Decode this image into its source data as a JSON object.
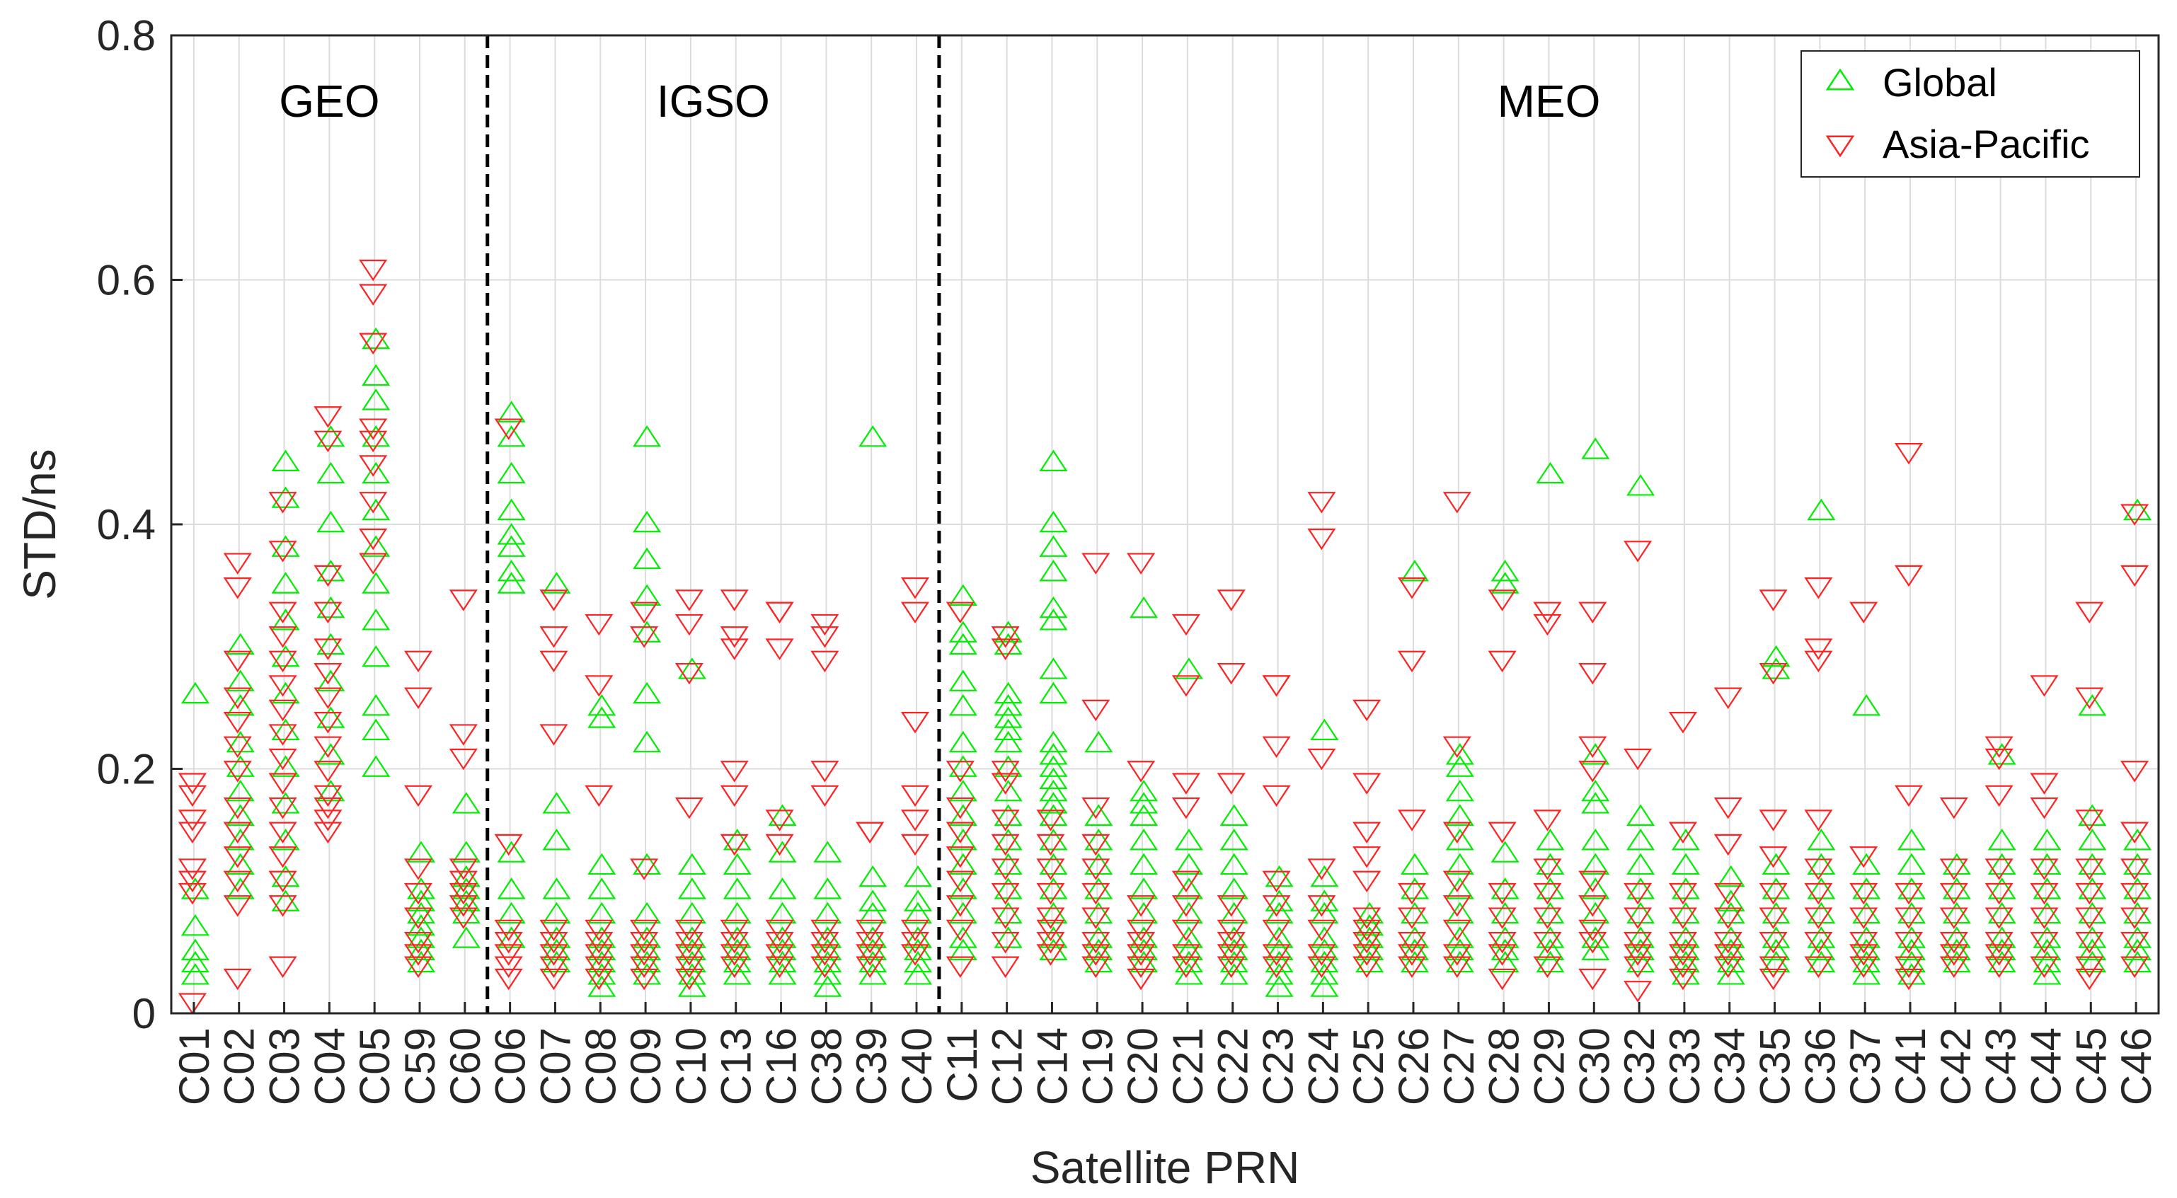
{
  "colors": {
    "global": "#00ee00",
    "asia_pacific": "#ff2222",
    "grid": "#dcdcdc",
    "axis": "#262626",
    "divider": "#000000"
  },
  "chart_data": {
    "type": "scatter",
    "xlabel": "Satellite PRN",
    "ylabel": "STD/ns",
    "ylim": [
      0,
      0.8
    ],
    "yticks": [
      0,
      0.2,
      0.4,
      0.6,
      0.8
    ],
    "ytick_labels": [
      "0",
      "0.2",
      "0.4",
      "0.6",
      "0.8"
    ],
    "grid": true,
    "legend_position": "top-right",
    "categories": [
      "C01",
      "C02",
      "C03",
      "C04",
      "C05",
      "C59",
      "C60",
      "C06",
      "C07",
      "C08",
      "C09",
      "C10",
      "C13",
      "C16",
      "C38",
      "C39",
      "C40",
      "C11",
      "C12",
      "C14",
      "C19",
      "C20",
      "C21",
      "C22",
      "C23",
      "C24",
      "C25",
      "C26",
      "C27",
      "C28",
      "C29",
      "C30",
      "C32",
      "C33",
      "C34",
      "C35",
      "C36",
      "C37",
      "C41",
      "C42",
      "C43",
      "C44",
      "C45",
      "C46"
    ],
    "groups": [
      {
        "label": "GEO",
        "members": [
          "C01",
          "C02",
          "C03",
          "C04",
          "C05",
          "C59",
          "C60"
        ]
      },
      {
        "label": "IGSO",
        "members": [
          "C06",
          "C07",
          "C08",
          "C09",
          "C10",
          "C13",
          "C16",
          "C38",
          "C39",
          "C40"
        ]
      },
      {
        "label": "MEO",
        "members": [
          "C11",
          "C12",
          "C14",
          "C19",
          "C20",
          "C21",
          "C22",
          "C23",
          "C24",
          "C25",
          "C26",
          "C27",
          "C28",
          "C29",
          "C30",
          "C32",
          "C33",
          "C34",
          "C35",
          "C36",
          "C37",
          "C41",
          "C42",
          "C43",
          "C44",
          "C45",
          "C46"
        ]
      }
    ],
    "series": [
      {
        "name": "Global",
        "marker": "triangle-up",
        "color": "#00ee00",
        "values": [
          [
            0.26,
            0.1,
            0.07,
            0.05,
            0.04,
            0.03
          ],
          [
            0.3,
            0.27,
            0.25,
            0.22,
            0.2,
            0.18,
            0.16,
            0.14,
            0.12,
            0.1
          ],
          [
            0.45,
            0.42,
            0.38,
            0.35,
            0.32,
            0.29,
            0.26,
            0.23,
            0.2,
            0.17,
            0.14,
            0.11,
            0.09
          ],
          [
            0.47,
            0.44,
            0.4,
            0.36,
            0.33,
            0.3,
            0.27,
            0.24,
            0.21,
            0.18
          ],
          [
            0.55,
            0.52,
            0.5,
            0.47,
            0.44,
            0.41,
            0.38,
            0.35,
            0.32,
            0.29,
            0.25,
            0.23,
            0.2
          ],
          [
            0.13,
            0.1,
            0.09,
            0.08,
            0.07,
            0.06,
            0.05,
            0.04
          ],
          [
            0.17,
            0.13,
            0.11,
            0.1,
            0.09,
            0.08,
            0.06
          ],
          [
            0.49,
            0.47,
            0.44,
            0.41,
            0.39,
            0.38,
            0.36,
            0.35,
            0.13,
            0.1,
            0.08,
            0.06
          ],
          [
            0.35,
            0.17,
            0.14,
            0.1,
            0.08,
            0.06,
            0.05,
            0.04
          ],
          [
            0.25,
            0.24,
            0.12,
            0.1,
            0.08,
            0.06,
            0.05,
            0.04,
            0.03,
            0.02
          ],
          [
            0.47,
            0.4,
            0.37,
            0.34,
            0.31,
            0.26,
            0.22,
            0.12,
            0.08,
            0.06,
            0.05,
            0.04,
            0.03
          ],
          [
            0.28,
            0.12,
            0.1,
            0.08,
            0.06,
            0.05,
            0.04,
            0.03,
            0.02
          ],
          [
            0.14,
            0.12,
            0.1,
            0.08,
            0.06,
            0.05,
            0.04,
            0.03
          ],
          [
            0.16,
            0.13,
            0.1,
            0.08,
            0.06,
            0.05,
            0.04,
            0.03
          ],
          [
            0.13,
            0.1,
            0.08,
            0.06,
            0.05,
            0.04,
            0.03,
            0.02
          ],
          [
            0.47,
            0.11,
            0.09,
            0.08,
            0.06,
            0.05,
            0.04,
            0.03
          ],
          [
            0.11,
            0.09,
            0.08,
            0.06,
            0.05,
            0.04,
            0.03
          ],
          [
            0.34,
            0.31,
            0.3,
            0.27,
            0.25,
            0.22,
            0.2,
            0.18,
            0.16,
            0.14,
            0.12,
            0.1,
            0.08,
            0.06,
            0.05
          ],
          [
            0.31,
            0.3,
            0.26,
            0.25,
            0.24,
            0.23,
            0.22,
            0.2,
            0.18,
            0.16,
            0.14,
            0.12,
            0.1,
            0.08,
            0.06
          ],
          [
            0.45,
            0.4,
            0.38,
            0.36,
            0.33,
            0.32,
            0.28,
            0.26,
            0.22,
            0.21,
            0.2,
            0.19,
            0.18,
            0.17,
            0.16,
            0.14,
            0.12,
            0.1,
            0.08,
            0.06,
            0.05
          ],
          [
            0.22,
            0.16,
            0.14,
            0.12,
            0.1,
            0.08,
            0.06,
            0.05,
            0.04
          ],
          [
            0.33,
            0.18,
            0.17,
            0.16,
            0.14,
            0.12,
            0.1,
            0.08,
            0.06,
            0.05,
            0.04
          ],
          [
            0.28,
            0.14,
            0.12,
            0.1,
            0.08,
            0.06,
            0.05,
            0.04,
            0.03
          ],
          [
            0.16,
            0.14,
            0.12,
            0.1,
            0.08,
            0.06,
            0.05,
            0.04,
            0.03
          ],
          [
            0.11,
            0.09,
            0.08,
            0.06,
            0.05,
            0.04,
            0.03,
            0.02
          ],
          [
            0.23,
            0.11,
            0.09,
            0.08,
            0.06,
            0.05,
            0.04,
            0.03,
            0.02
          ],
          [
            0.08,
            0.07,
            0.06,
            0.05,
            0.04
          ],
          [
            0.36,
            0.12,
            0.1,
            0.08,
            0.06,
            0.05,
            0.04
          ],
          [
            0.21,
            0.2,
            0.18,
            0.16,
            0.14,
            0.12,
            0.1,
            0.08,
            0.06,
            0.05,
            0.04
          ],
          [
            0.36,
            0.35,
            0.13,
            0.1,
            0.08,
            0.06,
            0.05,
            0.04
          ],
          [
            0.44,
            0.14,
            0.12,
            0.1,
            0.08,
            0.06,
            0.05,
            0.04
          ],
          [
            0.46,
            0.21,
            0.18,
            0.17,
            0.14,
            0.12,
            0.1,
            0.08,
            0.06,
            0.05
          ],
          [
            0.43,
            0.16,
            0.14,
            0.12,
            0.1,
            0.08,
            0.06,
            0.05,
            0.04
          ],
          [
            0.14,
            0.12,
            0.1,
            0.08,
            0.06,
            0.05,
            0.04,
            0.03
          ],
          [
            0.11,
            0.09,
            0.08,
            0.06,
            0.05,
            0.04,
            0.03
          ],
          [
            0.29,
            0.28,
            0.12,
            0.1,
            0.08,
            0.06,
            0.05,
            0.04
          ],
          [
            0.41,
            0.14,
            0.12,
            0.1,
            0.08,
            0.06,
            0.05,
            0.04
          ],
          [
            0.25,
            0.12,
            0.1,
            0.08,
            0.06,
            0.05,
            0.04,
            0.03
          ],
          [
            0.14,
            0.12,
            0.1,
            0.08,
            0.06,
            0.05,
            0.04,
            0.03
          ],
          [
            0.12,
            0.1,
            0.08,
            0.06,
            0.05,
            0.04
          ],
          [
            0.21,
            0.14,
            0.12,
            0.1,
            0.08,
            0.06,
            0.05,
            0.04
          ],
          [
            0.14,
            0.12,
            0.1,
            0.08,
            0.06,
            0.05,
            0.04,
            0.03
          ],
          [
            0.25,
            0.16,
            0.14,
            0.12,
            0.1,
            0.08,
            0.06,
            0.05,
            0.04
          ],
          [
            0.41,
            0.14,
            0.12,
            0.1,
            0.08,
            0.06,
            0.05,
            0.04
          ]
        ]
      },
      {
        "name": "Asia-Pacific",
        "marker": "triangle-down",
        "color": "#ff2222",
        "values": [
          [
            0.19,
            0.18,
            0.16,
            0.15,
            0.12,
            0.11,
            0.1,
            0.01
          ],
          [
            0.37,
            0.35,
            0.29,
            0.26,
            0.24,
            0.22,
            0.2,
            0.17,
            0.15,
            0.13,
            0.11,
            0.09,
            0.03
          ],
          [
            0.42,
            0.38,
            0.33,
            0.31,
            0.29,
            0.27,
            0.25,
            0.23,
            0.21,
            0.19,
            0.17,
            0.15,
            0.13,
            0.11,
            0.09,
            0.04
          ],
          [
            0.49,
            0.47,
            0.36,
            0.33,
            0.3,
            0.28,
            0.26,
            0.24,
            0.22,
            0.2,
            0.18,
            0.17,
            0.16,
            0.15
          ],
          [
            0.61,
            0.59,
            0.55,
            0.48,
            0.47,
            0.45,
            0.42,
            0.39,
            0.37
          ],
          [
            0.29,
            0.26,
            0.18,
            0.12,
            0.1,
            0.08,
            0.06,
            0.05,
            0.04
          ],
          [
            0.34,
            0.23,
            0.21,
            0.12,
            0.11,
            0.1,
            0.09,
            0.08
          ],
          [
            0.48,
            0.14,
            0.07,
            0.06,
            0.05,
            0.04,
            0.03
          ],
          [
            0.34,
            0.31,
            0.29,
            0.23,
            0.07,
            0.06,
            0.05,
            0.04,
            0.03
          ],
          [
            0.32,
            0.27,
            0.18,
            0.07,
            0.06,
            0.05,
            0.04,
            0.03
          ],
          [
            0.33,
            0.31,
            0.12,
            0.07,
            0.06,
            0.05,
            0.04,
            0.03
          ],
          [
            0.34,
            0.32,
            0.28,
            0.17,
            0.07,
            0.06,
            0.05,
            0.04,
            0.03
          ],
          [
            0.34,
            0.31,
            0.3,
            0.2,
            0.18,
            0.14,
            0.07,
            0.06,
            0.05,
            0.04
          ],
          [
            0.33,
            0.33,
            0.3,
            0.16,
            0.14,
            0.07,
            0.06,
            0.05,
            0.04
          ],
          [
            0.32,
            0.31,
            0.29,
            0.2,
            0.18,
            0.07,
            0.06,
            0.05,
            0.04
          ],
          [
            0.15,
            0.15,
            0.07,
            0.06,
            0.05,
            0.04
          ],
          [
            0.35,
            0.33,
            0.24,
            0.18,
            0.16,
            0.14,
            0.07,
            0.06,
            0.05
          ],
          [
            0.33,
            0.2,
            0.17,
            0.15,
            0.13,
            0.11,
            0.09,
            0.07,
            0.04
          ],
          [
            0.31,
            0.3,
            0.2,
            0.19,
            0.16,
            0.14,
            0.12,
            0.1,
            0.08,
            0.06,
            0.04
          ],
          [
            0.16,
            0.14,
            0.12,
            0.1,
            0.08,
            0.07,
            0.06,
            0.05
          ],
          [
            0.37,
            0.25,
            0.17,
            0.14,
            0.12,
            0.1,
            0.08,
            0.06,
            0.05,
            0.04
          ],
          [
            0.37,
            0.2,
            0.09,
            0.07,
            0.06,
            0.05,
            0.04,
            0.03
          ],
          [
            0.32,
            0.27,
            0.19,
            0.17,
            0.11,
            0.09,
            0.07,
            0.05,
            0.04
          ],
          [
            0.34,
            0.28,
            0.19,
            0.09,
            0.07,
            0.06,
            0.05,
            0.04
          ],
          [
            0.27,
            0.27,
            0.22,
            0.18,
            0.11,
            0.09,
            0.07,
            0.05,
            0.04
          ],
          [
            0.42,
            0.39,
            0.21,
            0.12,
            0.09,
            0.07,
            0.05,
            0.04
          ],
          [
            0.25,
            0.19,
            0.15,
            0.13,
            0.11,
            0.08,
            0.07,
            0.06,
            0.05,
            0.04
          ],
          [
            0.35,
            0.29,
            0.16,
            0.1,
            0.08,
            0.06,
            0.05,
            0.04
          ],
          [
            0.42,
            0.22,
            0.15,
            0.11,
            0.09,
            0.07,
            0.05,
            0.04
          ],
          [
            0.34,
            0.29,
            0.15,
            0.1,
            0.08,
            0.06,
            0.05,
            0.03
          ],
          [
            0.33,
            0.32,
            0.16,
            0.12,
            0.1,
            0.08,
            0.06,
            0.04
          ],
          [
            0.33,
            0.28,
            0.22,
            0.2,
            0.11,
            0.09,
            0.07,
            0.06,
            0.03
          ],
          [
            0.38,
            0.21,
            0.1,
            0.08,
            0.06,
            0.05,
            0.04,
            0.02
          ],
          [
            0.24,
            0.15,
            0.1,
            0.08,
            0.06,
            0.05,
            0.04,
            0.03
          ],
          [
            0.26,
            0.17,
            0.14,
            0.1,
            0.08,
            0.06,
            0.05,
            0.04
          ],
          [
            0.34,
            0.28,
            0.16,
            0.13,
            0.1,
            0.08,
            0.06,
            0.04,
            0.03
          ],
          [
            0.35,
            0.3,
            0.29,
            0.16,
            0.12,
            0.1,
            0.08,
            0.06,
            0.04
          ],
          [
            0.33,
            0.13,
            0.1,
            0.08,
            0.06,
            0.05,
            0.04
          ],
          [
            0.46,
            0.36,
            0.18,
            0.1,
            0.08,
            0.06,
            0.04,
            0.03
          ],
          [
            0.17,
            0.12,
            0.1,
            0.08,
            0.06,
            0.05,
            0.04
          ],
          [
            0.22,
            0.21,
            0.18,
            0.12,
            0.1,
            0.08,
            0.06,
            0.05,
            0.04
          ],
          [
            0.27,
            0.19,
            0.17,
            0.12,
            0.1,
            0.08,
            0.06,
            0.04
          ],
          [
            0.33,
            0.26,
            0.16,
            0.12,
            0.1,
            0.08,
            0.06,
            0.04,
            0.03
          ],
          [
            0.41,
            0.36,
            0.2,
            0.15,
            0.12,
            0.1,
            0.08,
            0.06,
            0.04
          ]
        ]
      }
    ]
  }
}
